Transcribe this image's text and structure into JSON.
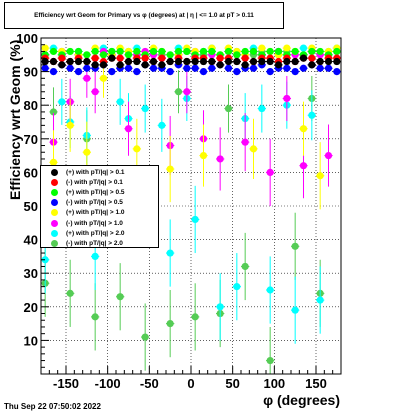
{
  "title": "Efficiency wrt Geom for Primary vs φ (degrees) at | η | <= 1.0 at pT > 0.11",
  "timestamp": "Thu Sep 22 07:50:02 2022",
  "chart_data": {
    "type": "scatter",
    "xlabel": "φ (degrees)",
    "ylabel": "Efficiency wrt Geom (%)",
    "xlim": [
      -180,
      180
    ],
    "ylim": [
      0,
      100
    ],
    "x_ticks": [
      -150,
      -100,
      -50,
      0,
      50,
      100,
      150
    ],
    "y_ticks": [
      10,
      20,
      30,
      40,
      50,
      60,
      70,
      80,
      90,
      100
    ],
    "grid": true,
    "legend_position": "middle-left",
    "x": [
      -175,
      -165,
      -155,
      -145,
      -135,
      -125,
      -115,
      -105,
      -95,
      -85,
      -75,
      -65,
      -55,
      -45,
      -35,
      -25,
      -15,
      -5,
      5,
      15,
      25,
      35,
      45,
      55,
      65,
      75,
      85,
      95,
      105,
      115,
      125,
      135,
      145,
      155,
      165,
      175
    ],
    "series": [
      {
        "name": "(+) with pT/|q| > 0.1",
        "color": "#000000",
        "values": [
          93,
          93,
          92,
          93,
          93,
          93,
          92,
          92,
          94,
          92,
          93,
          93,
          92,
          93,
          92,
          93,
          93,
          93,
          93,
          93,
          93,
          92,
          93,
          93,
          92,
          93,
          93,
          93,
          92,
          93,
          93,
          94,
          92,
          93,
          93,
          93
        ]
      },
      {
        "name": "(-) with pT/|q| > 0.1",
        "color": "#ff0000",
        "values": [
          94,
          93,
          94,
          93,
          94,
          93,
          94,
          93,
          94,
          94,
          93,
          94,
          94,
          93,
          94,
          93,
          94,
          93,
          94,
          94,
          93,
          94,
          94,
          93,
          94,
          93,
          94,
          94,
          93,
          94,
          93,
          94,
          94,
          93,
          94,
          94
        ]
      },
      {
        "name": "(+) with pT/|q| > 0.5",
        "color": "#00ff00",
        "values": [
          95,
          96,
          95,
          96,
          96,
          95,
          96,
          95,
          96,
          96,
          95,
          96,
          95,
          96,
          96,
          95,
          96,
          96,
          95,
          96,
          96,
          95,
          96,
          95,
          96,
          96,
          95,
          96,
          96,
          95,
          96,
          95,
          96,
          96,
          95,
          96
        ]
      },
      {
        "name": "(-) with pT/|q| > 0.5",
        "color": "#0000ff",
        "values": [
          91,
          90,
          92,
          91,
          90,
          91,
          91,
          92,
          90,
          91,
          91,
          90,
          92,
          91,
          91,
          90,
          92,
          91,
          91,
          90,
          91,
          92,
          91,
          90,
          91,
          91,
          92,
          90,
          91,
          91,
          90,
          91,
          92,
          91,
          91,
          90
        ]
      },
      {
        "name": "(+) with pT/|q| > 1.0",
        "color": "#ffff00",
        "values": [
          97,
          63,
          96,
          74,
          95,
          66,
          97,
          88,
          95,
          97,
          96,
          67,
          95,
          97,
          96,
          61,
          95,
          97,
          96,
          65,
          97,
          95,
          97,
          96,
          95,
          67,
          97,
          96,
          95,
          97,
          96,
          73,
          97,
          59,
          96,
          97
        ]
      },
      {
        "name": "(-) with pT/|q| > 1.0",
        "color": "#ff00ff",
        "values": [
          95,
          69,
          96,
          81,
          95,
          88,
          84,
          96,
          95,
          96,
          73,
          95,
          96,
          95,
          94,
          68,
          95,
          84,
          96,
          70,
          95,
          64,
          96,
          95,
          69,
          96,
          95,
          60,
          96,
          82,
          95,
          62,
          96,
          95,
          65,
          96
        ]
      },
      {
        "name": "(+) with pT/|q| > 2.0",
        "color": "#00ffff",
        "values": [
          34,
          97,
          81,
          75,
          96,
          71,
          35,
          97,
          96,
          81,
          76,
          97,
          79,
          96,
          74,
          36,
          97,
          82,
          46,
          96,
          97,
          20,
          96,
          26,
          76,
          97,
          79,
          25,
          96,
          80,
          19,
          97,
          77,
          22,
          96,
          97
        ]
      },
      {
        "name": "(-) with pT/|q| > 2.0",
        "color": "#55cc55",
        "values": [
          27,
          78,
          96,
          24,
          95,
          70,
          17,
          96,
          95,
          23,
          96,
          95,
          11,
          96,
          95,
          15,
          84,
          96,
          17,
          95,
          96,
          18,
          79,
          96,
          32,
          95,
          96,
          4,
          95,
          96,
          38,
          95,
          82,
          24,
          95,
          96
        ]
      }
    ]
  }
}
